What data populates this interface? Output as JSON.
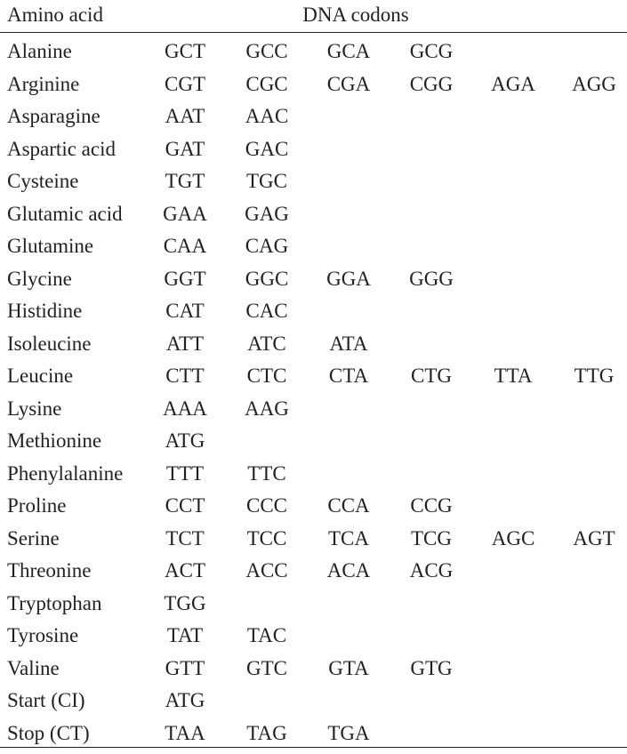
{
  "table": {
    "headers": {
      "amino_acid": "Amino acid",
      "codons": "DNA codons"
    },
    "rows": [
      {
        "name": "Alanine",
        "codons": [
          "GCT",
          "GCC",
          "GCA",
          "GCG"
        ]
      },
      {
        "name": "Arginine",
        "codons": [
          "CGT",
          "CGC",
          "CGA",
          "CGG",
          "AGA",
          "AGG"
        ]
      },
      {
        "name": "Asparagine",
        "codons": [
          "AAT",
          "AAC"
        ]
      },
      {
        "name": "Aspartic acid",
        "codons": [
          "GAT",
          "GAC"
        ]
      },
      {
        "name": "Cysteine",
        "codons": [
          "TGT",
          "TGC"
        ]
      },
      {
        "name": "Glutamic acid",
        "codons": [
          "GAA",
          "GAG"
        ]
      },
      {
        "name": "Glutamine",
        "codons": [
          "CAA",
          "CAG"
        ]
      },
      {
        "name": "Glycine",
        "codons": [
          "GGT",
          "GGC",
          "GGA",
          "GGG"
        ]
      },
      {
        "name": "Histidine",
        "codons": [
          "CAT",
          "CAC"
        ]
      },
      {
        "name": "Isoleucine",
        "codons": [
          "ATT",
          "ATC",
          "ATA"
        ]
      },
      {
        "name": "Leucine",
        "codons": [
          "CTT",
          "CTC",
          "CTA",
          "CTG",
          "TTA",
          "TTG"
        ]
      },
      {
        "name": "Lysine",
        "codons": [
          "AAA",
          "AAG"
        ]
      },
      {
        "name": "Methionine",
        "codons": [
          "ATG"
        ]
      },
      {
        "name": "Phenylalanine",
        "codons": [
          "TTT",
          "TTC"
        ]
      },
      {
        "name": "Proline",
        "codons": [
          "CCT",
          "CCC",
          "CCA",
          "CCG"
        ]
      },
      {
        "name": "Serine",
        "codons": [
          "TCT",
          "TCC",
          "TCA",
          "TCG",
          "AGC",
          "AGT"
        ]
      },
      {
        "name": "Threonine",
        "codons": [
          "ACT",
          "ACC",
          "ACA",
          "ACG"
        ]
      },
      {
        "name": "Tryptophan",
        "codons": [
          "TGG"
        ]
      },
      {
        "name": "Tyrosine",
        "codons": [
          "TAT",
          "TAC"
        ]
      },
      {
        "name": "Valine",
        "codons": [
          "GTT",
          "GTC",
          "GTA",
          "GTG"
        ]
      },
      {
        "name": "Start (CI)",
        "codons": [
          "ATG"
        ]
      },
      {
        "name": "Stop (CT)",
        "codons": [
          "TAA",
          "TAG",
          "TGA"
        ]
      }
    ]
  }
}
